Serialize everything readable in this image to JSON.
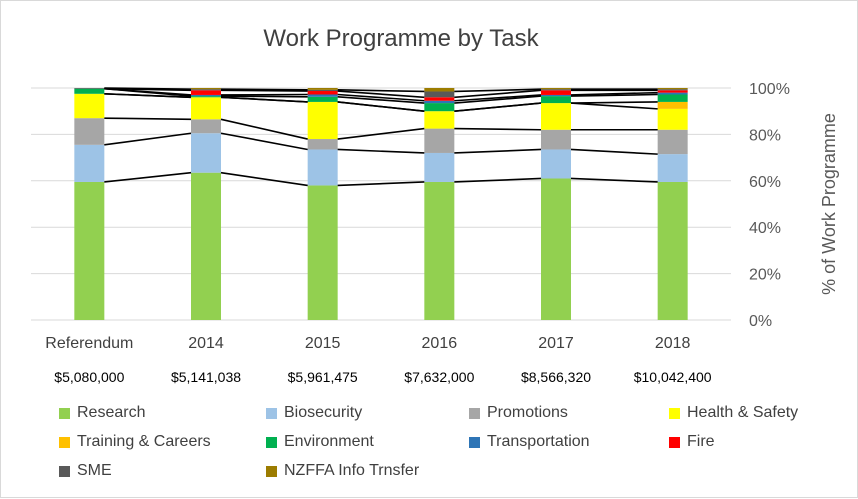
{
  "chart_data": {
    "type": "bar",
    "stacked": "percent",
    "title": "Work Programme by Task",
    "ylabel": "% of Work Programme",
    "yaxis_position": "right",
    "ylim": [
      0,
      100
    ],
    "yticks": [
      "0%",
      "20%",
      "40%",
      "60%",
      "80%",
      "100%"
    ],
    "grid": true,
    "legend_position": "bottom",
    "categories": [
      "Referendum",
      "2014",
      "2015",
      "2016",
      "2017",
      "2018"
    ],
    "totals": [
      "$5,080,000",
      "$5,141,038",
      "$5,961,475",
      "$7,632,000",
      "$8,566,320",
      "$10,042,400"
    ],
    "series_lines": true,
    "series": [
      {
        "name": "Research",
        "color": "#92d050",
        "values": [
          59.5,
          63.5,
          58,
          59.5,
          61,
          59.5
        ]
      },
      {
        "name": "Biosecurity",
        "color": "#9dc3e6",
        "values": [
          16,
          17,
          15.5,
          12.5,
          12.5,
          12
        ]
      },
      {
        "name": "Promotions",
        "color": "#a6a6a6",
        "values": [
          11.5,
          6,
          4.5,
          10.5,
          8.5,
          10.5
        ]
      },
      {
        "name": "Health & Safety",
        "color": "#ffff00",
        "values": [
          10.5,
          9.5,
          16,
          7.5,
          11.5,
          9
        ]
      },
      {
        "name": "Training & Careers",
        "color": "#ffc000",
        "values": [
          0,
          0,
          0,
          0,
          0,
          3
        ]
      },
      {
        "name": "Environment",
        "color": "#00b050",
        "values": [
          2.2,
          0.5,
          2.2,
          3.5,
          3,
          3.2
        ]
      },
      {
        "name": "Transportation",
        "color": "#2e75b6",
        "values": [
          0,
          0.5,
          1,
          1,
          0.5,
          0.8
        ]
      },
      {
        "name": "Fire",
        "color": "#ff0000",
        "values": [
          0,
          2,
          1.5,
          1.5,
          2,
          1
        ]
      },
      {
        "name": "SME",
        "color": "#595959",
        "values": [
          0.3,
          0.5,
          0.5,
          2.5,
          0.5,
          0.5
        ]
      },
      {
        "name": "NZFFA Info Trnsfer",
        "color": "#9c7c00",
        "values": [
          0,
          0.5,
          0.8,
          1.5,
          0.5,
          0.5
        ]
      }
    ]
  }
}
